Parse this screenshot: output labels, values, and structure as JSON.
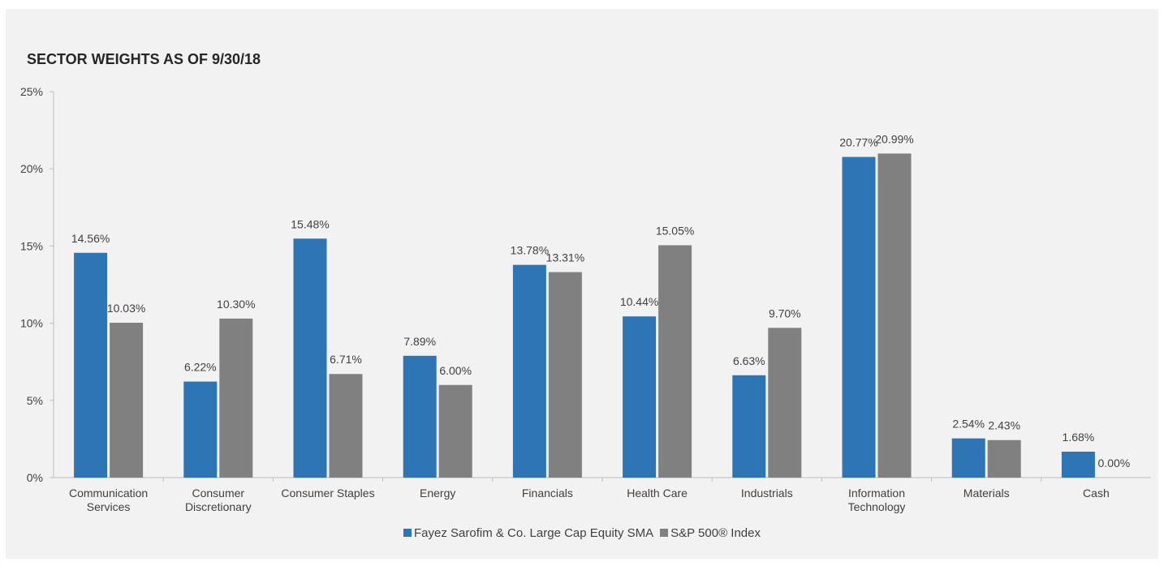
{
  "chart_data": {
    "type": "bar",
    "title": "SECTOR WEIGHTS AS OF 9/30/18",
    "categories": [
      [
        "Communication",
        "Services"
      ],
      [
        "Consumer",
        "Discretionary"
      ],
      [
        "Consumer Staples"
      ],
      [
        "Energy"
      ],
      [
        "Financials"
      ],
      [
        "Health Care"
      ],
      [
        "Industrials"
      ],
      [
        "Information",
        "Technology"
      ],
      [
        "Materials"
      ],
      [
        "Cash"
      ]
    ],
    "series": [
      {
        "name": "Fayez Sarofim & Co. Large Cap Equity SMA",
        "color": "#2e75b6",
        "values": [
          14.56,
          6.22,
          15.48,
          7.89,
          13.78,
          10.44,
          6.63,
          20.77,
          2.54,
          1.68
        ],
        "labels": [
          "14.56%",
          "6.22%",
          "15.48%",
          "7.89%",
          "13.78%",
          "10.44%",
          "6.63%",
          "20.77%",
          "2.54%",
          "1.68%"
        ]
      },
      {
        "name": "S&P 500® Index",
        "color": "#808080",
        "values": [
          10.03,
          10.3,
          6.71,
          6.0,
          13.31,
          15.05,
          9.7,
          20.99,
          2.43,
          0.0
        ],
        "labels": [
          "10.03%",
          "10.30%",
          "6.71%",
          "6.00%",
          "13.31%",
          "15.05%",
          "9.70%",
          "20.99%",
          "2.43%",
          "0.00%"
        ]
      }
    ],
    "yticks": [
      "0%",
      "5%",
      "10%",
      "15%",
      "20%",
      "25%"
    ],
    "ylim": [
      0,
      25
    ],
    "grid": false,
    "legend": "bottom-center"
  }
}
